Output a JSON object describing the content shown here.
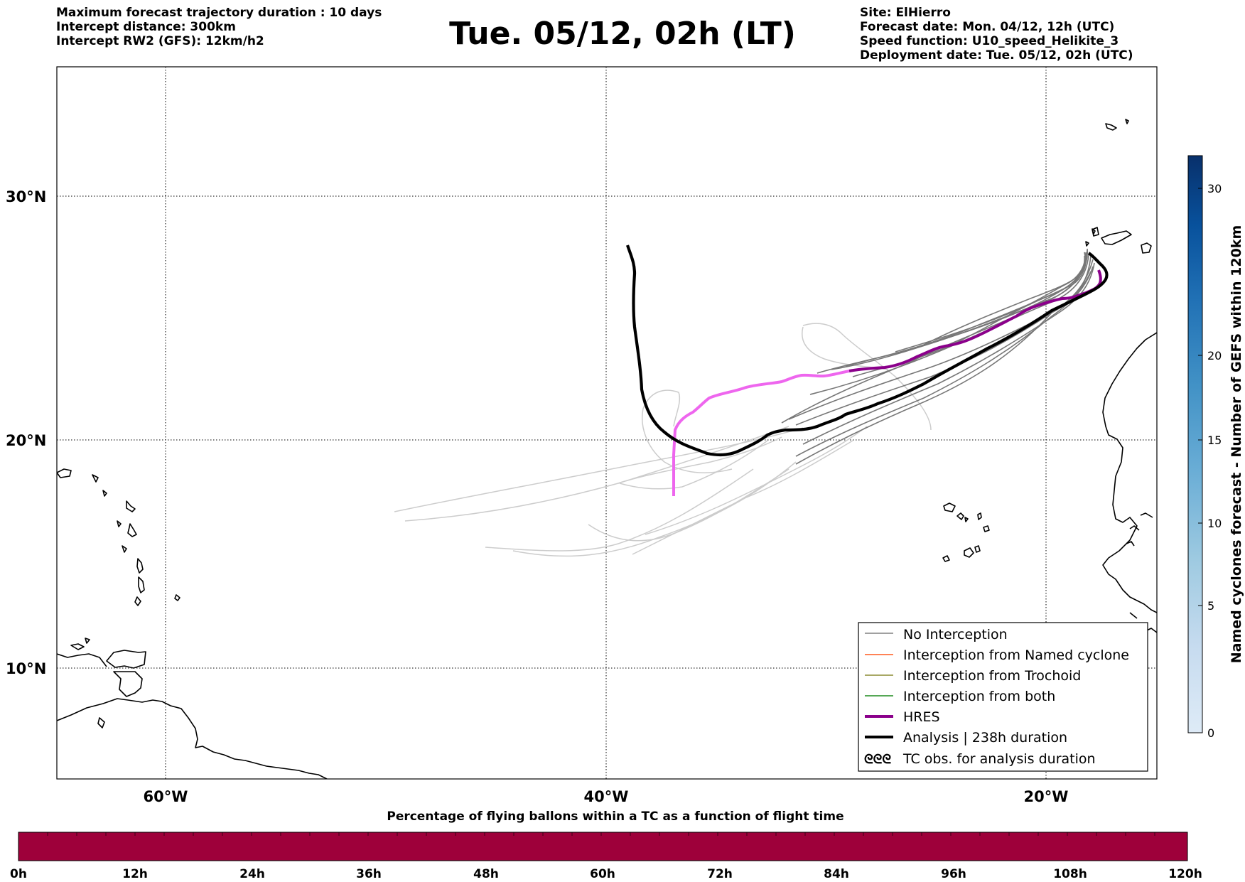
{
  "header": {
    "left": [
      "Maximum forecast trajectory duration : 10 days",
      "Intercept distance: 300km",
      "Intercept RW2 (GFS):  12km/h2"
    ],
    "title": "Tue. 05/12, 02h (LT)",
    "right": [
      "Site: ElHierro",
      "Forecast date: Mon. 04/12, 12h (UTC)",
      "Speed function: U10_speed_Helikite_3",
      "Deployment date: Tue. 05/12, 02h (UTC)"
    ]
  },
  "map": {
    "lat_labels": [
      "30°N",
      "20°N",
      "10°N"
    ],
    "lon_labels": [
      "60°W",
      "40°W",
      "20°W"
    ],
    "legend": [
      {
        "label": "No Interception",
        "color": "#808080"
      },
      {
        "label": "Interception from Named cyclone",
        "color": "#ff5a1e"
      },
      {
        "label": "Interception from Trochoid",
        "color": "#8c8c32"
      },
      {
        "label": "Interception from both",
        "color": "#1e8c1e"
      },
      {
        "label": "HRES",
        "color": "#8b008b"
      },
      {
        "label": "Analysis | 238h duration",
        "color": "#000000"
      },
      {
        "label": "TC obs. for analysis duration",
        "symbol": "ᘓᘓᘓ"
      }
    ]
  },
  "colorbar": {
    "label": "Named cyclones forecast - Number of GEFS within 120km",
    "ticks": [
      "0",
      "5",
      "10",
      "15",
      "20",
      "30"
    ],
    "colors": [
      "#deebf7",
      "#c6dbef",
      "#9ecae1",
      "#6baed6",
      "#4292c6",
      "#2171b5",
      "#08519c",
      "#08306b"
    ]
  },
  "bottom_bar": {
    "title": "Percentage of flying ballons within a TC as a function of flight time",
    "ticks": [
      "0h",
      "12h",
      "24h",
      "36h",
      "48h",
      "60h",
      "72h",
      "84h",
      "96h",
      "108h",
      "120h"
    ],
    "fill_color": "#9e003a"
  }
}
